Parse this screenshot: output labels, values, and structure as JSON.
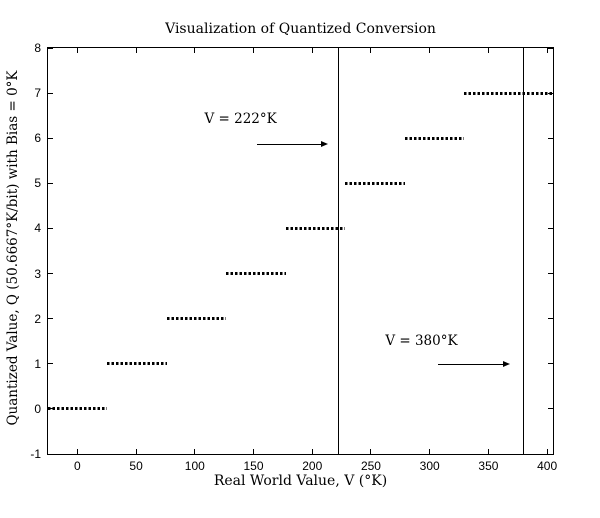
{
  "chart_data": {
    "type": "line",
    "subtype": "quantization-staircase",
    "title": "Visualization of Quantized Conversion",
    "xlabel": "Real World Value, V (°K)",
    "ylabel": "Quantized Value, Q (50.6667°K/bit) with Bias = 0°K",
    "xlim": [
      -25,
      405
    ],
    "ylim": [
      -1,
      8
    ],
    "x_ticks": [
      0,
      50,
      100,
      150,
      200,
      250,
      300,
      350,
      400
    ],
    "y_ticks": [
      -1,
      0,
      1,
      2,
      3,
      4,
      5,
      6,
      7,
      8
    ],
    "grid": false,
    "legend": null,
    "line_color": "#000000",
    "line_style": "dotted",
    "step_size_k_per_bit": 50.6667,
    "bias_k": 0,
    "steps": [
      {
        "level": 0,
        "v_start": -25,
        "v_end": 25.33
      },
      {
        "level": 1,
        "v_start": 25.33,
        "v_end": 76
      },
      {
        "level": 2,
        "v_start": 76,
        "v_end": 126.67
      },
      {
        "level": 3,
        "v_start": 126.67,
        "v_end": 177.33
      },
      {
        "level": 4,
        "v_start": 177.33,
        "v_end": 228
      },
      {
        "level": 5,
        "v_start": 228,
        "v_end": 278.67
      },
      {
        "level": 6,
        "v_start": 278.67,
        "v_end": 329.33
      },
      {
        "level": 7,
        "v_start": 329.33,
        "v_end": 405
      }
    ],
    "vertical_lines": [
      222,
      380
    ],
    "annotations": [
      {
        "text": "V = 222°K",
        "label_pos": {
          "v": 139,
          "q": 6.43
        },
        "arrow": {
          "from": {
            "v": 153,
            "q": 5.88
          },
          "to": {
            "v": 213,
            "q": 5.88
          }
        }
      },
      {
        "text": "V = 380°K",
        "label_pos": {
          "v": 293,
          "q": 1.5
        },
        "arrow": {
          "from": {
            "v": 307,
            "q": 0.99
          },
          "to": {
            "v": 368,
            "q": 0.99
          }
        }
      }
    ]
  }
}
